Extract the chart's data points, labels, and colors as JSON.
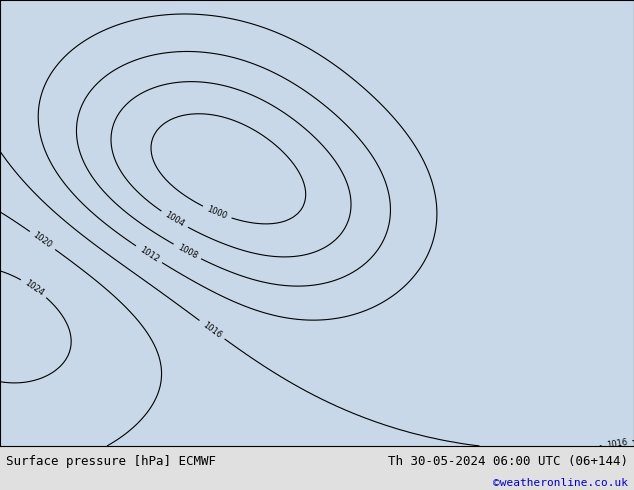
{
  "title_left": "Surface pressure [hPa] ECMWF",
  "title_right": "Th 30-05-2024 06:00 UTC (06+144)",
  "credit": "©weatheronline.co.uk",
  "title_fontsize": 9,
  "credit_fontsize": 8,
  "credit_color": "#0000cc",
  "background_color": "#f0f0f0",
  "map_bg_land": "#90d090",
  "map_bg_sea": "#d8e8f0",
  "fig_width": 6.34,
  "fig_height": 4.9,
  "dpi": 100,
  "bottom_bar_color": "#e8e8e8",
  "bottom_bar_height": 0.09
}
